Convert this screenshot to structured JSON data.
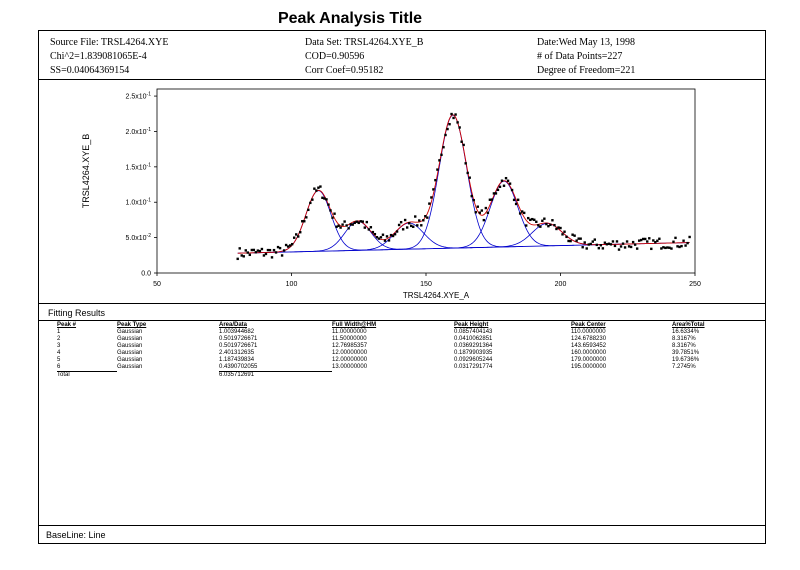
{
  "title": "Peak Analysis Title",
  "header": {
    "source_file": "Source File: TRSL4264.XYE",
    "chi2": "Chi^2=1.839081065E-4",
    "ss": "SS=0.04064369154",
    "data_set": "Data Set: TRSL4264.XYE_B",
    "cod": "COD=0.90596",
    "corr_coef": "Corr Coef=0.95182",
    "date": "Date:Wed May 13, 1998",
    "num_points": "# of Data Points=227",
    "dof": "Degree of Freedom=221"
  },
  "chart_data": {
    "type": "scatter",
    "xlabel": "TRSL4264.XYE_A",
    "ylabel": "TRSL4264.XYE_B",
    "xlim": [
      50,
      250
    ],
    "ylim": [
      0,
      0.26
    ],
    "x_ticks": [
      {
        "value": 50,
        "label": "50"
      },
      {
        "value": 100,
        "label": "100"
      },
      {
        "value": 150,
        "label": "150"
      },
      {
        "value": 200,
        "label": "200"
      },
      {
        "value": 250,
        "label": "250"
      }
    ],
    "y_ticks": [
      {
        "value": 0,
        "label": "0.0"
      },
      {
        "value": 0.05,
        "label": "5.0x10",
        "exp": "-2"
      },
      {
        "value": 0.1,
        "label": "1.0x10",
        "exp": "-1"
      },
      {
        "value": 0.15,
        "label": "1.5x10",
        "exp": "-1"
      },
      {
        "value": 0.2,
        "label": "2.0x10",
        "exp": "-1"
      },
      {
        "value": 0.25,
        "label": "2.5x10",
        "exp": "-1"
      }
    ],
    "baseline": {
      "x": [
        80,
        248
      ],
      "y": [
        0.028,
        0.043
      ]
    },
    "data_x_range": [
      80,
      248
    ],
    "peaks": [
      {
        "center": 110.0,
        "height": 0.0857404143,
        "fwhm": 11.0
      },
      {
        "center": 124.678823,
        "height": 0.0410062851,
        "fwhm": 11.5
      },
      {
        "center": 143.6593452,
        "height": 0.0369291364,
        "fwhm": 12.76985357
      },
      {
        "center": 160.0,
        "height": 0.1879903935,
        "fwhm": 12.0
      },
      {
        "center": 179.0,
        "height": 0.0929605244,
        "fwhm": 12.0
      },
      {
        "center": 195.0,
        "height": 0.0317291774,
        "fwhm": 13.0
      }
    ],
    "colors": {
      "data": "#000000",
      "peaks": "#0000cc",
      "fit": "#cc0000",
      "baseline": "#0000cc"
    }
  },
  "fitting": {
    "title": "Fitting Results",
    "headers": [
      "Peak #",
      "Peak Type",
      "Area/Data",
      "Full Width@HM",
      "Peak Height",
      "Peak Center",
      "Area%Total"
    ],
    "rows": [
      [
        "1",
        "Gaussian",
        "1.003944682",
        "11.00000000",
        "0.0857404143",
        "110.0000000",
        "16.6334%"
      ],
      [
        "2",
        "Gaussian",
        "0.5019726671",
        "11.50000000",
        "0.0410062851",
        "124.6788230",
        "8.3167%"
      ],
      [
        "3",
        "Gaussian",
        "0.5019726671",
        "12.76985357",
        "0.0369291364",
        "143.6593452",
        "8.3167%"
      ],
      [
        "4",
        "Gaussian",
        "2.401312635",
        "12.00000000",
        "0.1879903935",
        "160.0000000",
        "39.7851%"
      ],
      [
        "5",
        "Gaussian",
        "1.187439834",
        "12.00000000",
        "0.0929605244",
        "179.0000000",
        "19.6736%"
      ],
      [
        "6",
        "Gaussian",
        "0.4390702055",
        "13.00000000",
        "0.0317291774",
        "195.0000000",
        "7.2745%"
      ]
    ],
    "total_label": "Total",
    "total_value": "6.035712691"
  },
  "baseline_label": "BaseLine: Line"
}
